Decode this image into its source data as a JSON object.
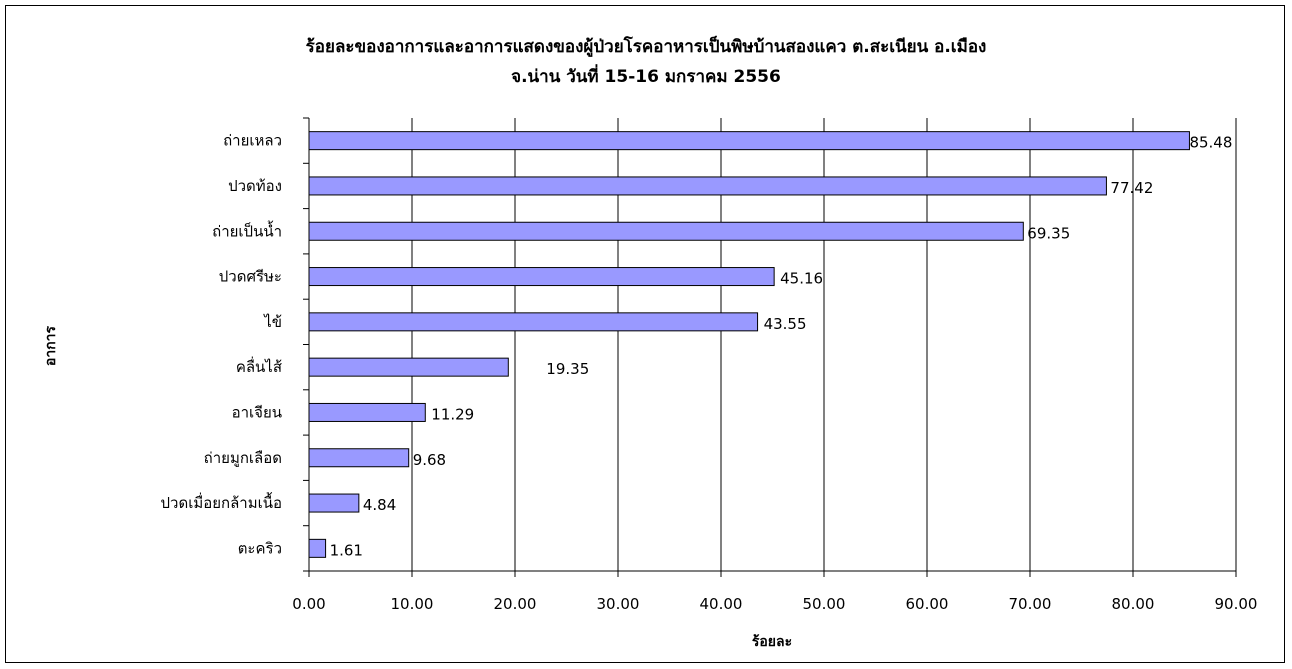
{
  "chart_data": {
    "type": "bar",
    "orientation": "horizontal",
    "title_line1": "ร้อยละของอาการและอาการแสดงของผู้ป่วยโรคอาหารเป็นพิษบ้านสองแคว ต.สะเนียน อ.เมือง",
    "title_line2": "จ.น่าน วันที่ 15-16 มกราคม 2556",
    "xlabel": "ร้อยละ",
    "ylabel": "อาการ",
    "xlim": [
      0,
      90
    ],
    "x_ticks": [
      "0.00",
      "10.00",
      "20.00",
      "30.00",
      "40.00",
      "50.00",
      "60.00",
      "70.00",
      "80.00",
      "90.00"
    ],
    "categories": [
      "ถ่ายเหลว",
      "ปวดท้อง",
      "ถ่ายเป็นน้ำ",
      "ปวดศรีษะ",
      "ไข้",
      "คลื่นไส้",
      "อาเจียน",
      "ถ่ายมูกเลือด",
      "ปวดเมื่อยกล้ามเนื้อ",
      "ตะคริว"
    ],
    "values": [
      85.48,
      77.42,
      69.35,
      45.16,
      43.55,
      19.35,
      11.29,
      9.68,
      4.84,
      1.61
    ],
    "value_labels": [
      "85.48",
      "77.42",
      "69.35",
      "45.16",
      "43.55",
      "19.35",
      "11.29",
      "9.68",
      "4.84",
      "1.61"
    ],
    "grid": true,
    "legend": "none",
    "bar_color": "#9999ff"
  }
}
